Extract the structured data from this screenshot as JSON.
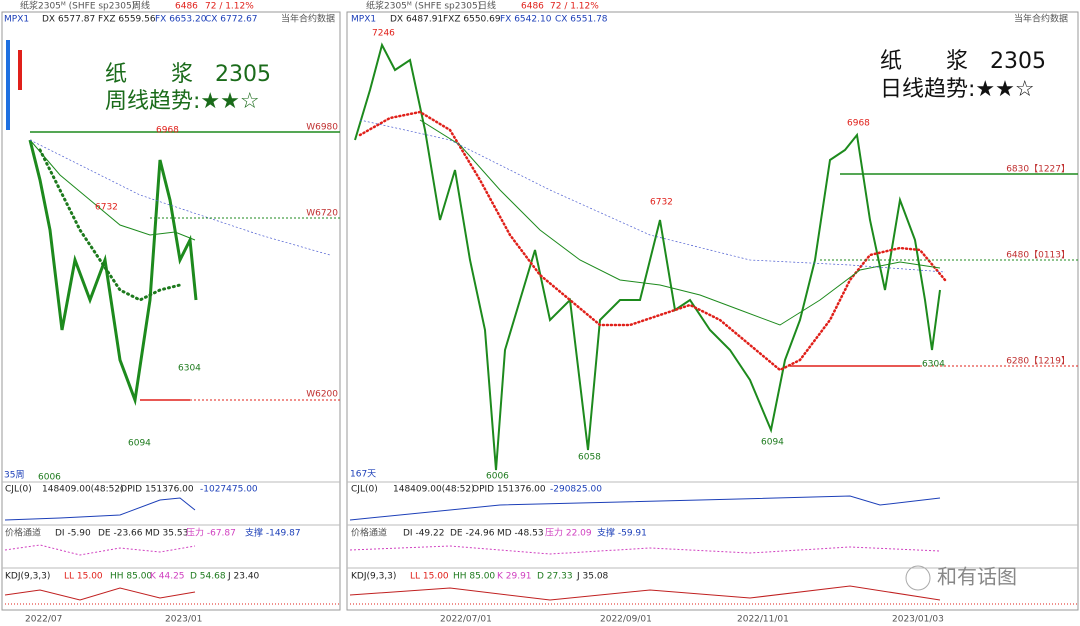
{
  "left": {
    "header": {
      "name": "纸浆2305ᴹ (SHFE sp2305)",
      "period": "周线",
      "price": "6486",
      "change": "72 / 1.12%"
    },
    "indicator": {
      "label": "MPX1",
      "items": [
        "DX 6577.87",
        "FXZ 6559.56",
        "FX 6653.20",
        "CX 6772.67"
      ],
      "note": "当年合约数据"
    },
    "title": "纸　　浆　2305",
    "subtitle": "周线趋势:★★☆",
    "levels": [
      "W6980",
      "W6720",
      "W6200"
    ],
    "price_marks": [
      "6968",
      "6732",
      "6304",
      "6094",
      "6006"
    ],
    "count": "35周",
    "cjl": [
      "CJL(0)",
      "148409.00(48:52)",
      "OPID 151376.00",
      "-1027475.00"
    ],
    "channel": [
      "价格通道",
      "DI -5.90",
      "DE -23.66",
      "MD 35.53",
      "压力 -67.87",
      "支撑 -149.87"
    ],
    "kdj": [
      "KDJ(9,3,3)",
      "LL 15.00",
      "HH 85.00",
      "K 44.25",
      "D 54.68",
      "J 23.40"
    ],
    "dates": [
      "2022/07",
      "2023/01"
    ]
  },
  "right": {
    "header": {
      "name": "纸浆2305ᴹ (SHFE sp2305)",
      "period": "日线",
      "price": "6486",
      "change": "72 / 1.12%"
    },
    "indicator": {
      "label": "MPX1",
      "items": [
        "DX 6487.91",
        "FXZ 6550.69",
        "FX 6542.10",
        "CX 6551.78"
      ],
      "note": "当年合约数据"
    },
    "title": "纸　　浆　2305",
    "subtitle": "日线趋势:★★☆",
    "levels": [
      "6830【1227】",
      "6480【0113】",
      "6280【1219】"
    ],
    "price_marks": [
      "7246",
      "6968",
      "6732",
      "6304",
      "6094",
      "6058",
      "6006"
    ],
    "count": "167天",
    "cjl": [
      "CJL(0)",
      "148409.00(48:52)",
      "OPID 151376.00",
      "-290825.00"
    ],
    "channel": [
      "价格通道",
      "DI -49.22",
      "DE -24.96",
      "MD -48.53",
      "压力 22.09",
      "支撑 -59.91"
    ],
    "kdj": [
      "KDJ(9,3,3)",
      "LL 15.00",
      "HH 85.00",
      "K 29.91",
      "D 27.33",
      "J 35.08"
    ],
    "dates": [
      "2022/07/01",
      "2022/09/01",
      "2022/11/01",
      "2023/01/03"
    ]
  },
  "watermark": "和有话图"
}
